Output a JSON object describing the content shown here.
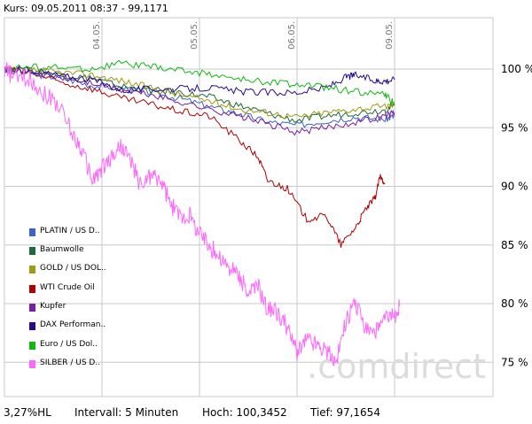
{
  "header": {
    "text": "Kurs: 09.05.2011 08:37 - 99,1171"
  },
  "footer": {
    "change": "3,27%HL",
    "interval": "Intervall: 5 Minuten",
    "high": "Hoch: 100,3452",
    "low": "Tief: 97,1654"
  },
  "watermark": ".comdirect",
  "chart_data": {
    "type": "line",
    "ylim": [
      72,
      102
    ],
    "y_ticks": [
      {
        "value": 100,
        "label": "100 %"
      },
      {
        "value": 95,
        "label": "95 %"
      },
      {
        "value": 90,
        "label": "90 %"
      },
      {
        "value": 85,
        "label": "85 %"
      },
      {
        "value": 80,
        "label": "80 %"
      },
      {
        "value": 75,
        "label": "75 %"
      }
    ],
    "x_ticks": [
      {
        "value": 1,
        "label": "04.05."
      },
      {
        "value": 2,
        "label": "05.05."
      },
      {
        "value": 3,
        "label": "06.05."
      },
      {
        "value": 4,
        "label": "09.05."
      }
    ],
    "xlim": [
      0,
      4.9
    ],
    "grid": true,
    "legend_position": "left",
    "series": [
      {
        "name": "PLATIN / US D..",
        "color": "#3a64c8",
        "x": [
          0,
          0.3,
          0.6,
          0.9,
          1.2,
          1.5,
          1.8,
          2.1,
          2.4,
          2.7,
          3.0,
          3.3,
          3.6,
          3.9,
          4.0
        ],
        "y": [
          100.0,
          99.6,
          99.2,
          98.6,
          98.4,
          98.0,
          97.5,
          96.8,
          96.2,
          95.5,
          95.2,
          95.6,
          95.9,
          95.7,
          96.0
        ]
      },
      {
        "name": "Baumwolle",
        "color": "#1d6b3a",
        "x": [
          0,
          0.3,
          0.6,
          0.9,
          1.2,
          1.5,
          1.8,
          2.1,
          2.4,
          2.7,
          3.0,
          3.3,
          3.6,
          3.9,
          4.0
        ],
        "y": [
          100.0,
          99.8,
          99.5,
          99.2,
          98.5,
          98.2,
          98.0,
          97.6,
          96.9,
          96.2,
          95.6,
          96.0,
          96.3,
          96.5,
          96.9
        ]
      },
      {
        "name": "GOLD / US DOL..",
        "color": "#a09a10",
        "x": [
          0,
          0.3,
          0.6,
          0.9,
          1.2,
          1.5,
          1.8,
          2.1,
          2.4,
          2.7,
          3.0,
          3.3,
          3.6,
          3.9,
          4.0
        ],
        "y": [
          100.0,
          99.9,
          99.7,
          99.5,
          99.0,
          98.4,
          97.8,
          97.3,
          96.6,
          96.3,
          95.9,
          96.3,
          96.6,
          96.8,
          97.0
        ]
      },
      {
        "name": "WTI Crude Oil",
        "color": "#b00000",
        "x": [
          0,
          0.3,
          0.6,
          0.9,
          1.2,
          1.5,
          1.8,
          2.1,
          2.4,
          2.6,
          2.7,
          2.9,
          3.1,
          3.3,
          3.45,
          3.6,
          3.7,
          3.8,
          3.85,
          3.9
        ],
        "y": [
          100.0,
          99.6,
          98.8,
          98.3,
          97.5,
          97.0,
          96.4,
          96.0,
          94.0,
          92.5,
          90.5,
          89.8,
          87.2,
          87.5,
          85.0,
          86.5,
          88.0,
          89.0,
          90.8,
          90.3
        ]
      },
      {
        "name": "Kupfer",
        "color": "#7b1fa2",
        "x": [
          0,
          0.3,
          0.6,
          0.9,
          1.2,
          1.5,
          1.8,
          2.1,
          2.4,
          2.7,
          3.0,
          3.3,
          3.6,
          3.9,
          4.0
        ],
        "y": [
          100.0,
          99.7,
          99.2,
          98.8,
          98.2,
          97.8,
          97.2,
          96.6,
          96.0,
          95.3,
          94.6,
          95.0,
          95.5,
          96.0,
          96.3
        ]
      },
      {
        "name": "DAX Performan..",
        "color": "#2a0a8a",
        "x": [
          0,
          0.3,
          0.6,
          0.9,
          1.2,
          1.5,
          1.8,
          2.1,
          2.4,
          2.7,
          3.0,
          3.3,
          3.5,
          3.6,
          3.8,
          3.9,
          4.0
        ],
        "y": [
          100.0,
          99.9,
          99.4,
          99.1,
          98.2,
          98.3,
          98.3,
          98.4,
          98.1,
          98.0,
          98.0,
          98.4,
          99.3,
          99.5,
          99.0,
          99.0,
          99.1
        ]
      },
      {
        "name": "Euro / US Dol..",
        "color": "#11b811",
        "x": [
          0,
          0.3,
          0.6,
          0.9,
          1.2,
          1.5,
          1.8,
          2.1,
          2.4,
          2.7,
          3.0,
          3.3,
          3.6,
          3.9,
          4.0
        ],
        "y": [
          100.0,
          100.2,
          100.1,
          100.0,
          100.5,
          100.2,
          99.9,
          99.6,
          99.1,
          98.9,
          98.7,
          98.4,
          98.1,
          97.8,
          97.0
        ]
      },
      {
        "name": "SILBER / US D..",
        "color": "#ff66ff",
        "x": [
          0,
          0.1,
          0.25,
          0.4,
          0.55,
          0.7,
          0.8,
          0.9,
          1.0,
          1.1,
          1.2,
          1.3,
          1.4,
          1.5,
          1.6,
          1.7,
          1.8,
          1.9,
          2.0,
          2.1,
          2.2,
          2.3,
          2.4,
          2.5,
          2.6,
          2.7,
          2.8,
          2.9,
          3.0,
          3.1,
          3.2,
          3.3,
          3.4,
          3.5,
          3.6,
          3.7,
          3.8,
          3.9,
          4.0,
          4.05
        ],
        "y": [
          100.0,
          99.3,
          99.2,
          98.0,
          97.0,
          94.5,
          93.0,
          90.5,
          91.5,
          92.5,
          93.5,
          92.0,
          90.0,
          91.0,
          90.5,
          88.5,
          87.5,
          87.5,
          86.0,
          85.0,
          84.0,
          83.0,
          82.5,
          80.8,
          81.5,
          79.5,
          79.2,
          78.0,
          75.8,
          77.0,
          76.5,
          76.0,
          75.0,
          78.5,
          80.0,
          78.0,
          77.5,
          78.5,
          79.0,
          79.8
        ]
      }
    ]
  }
}
